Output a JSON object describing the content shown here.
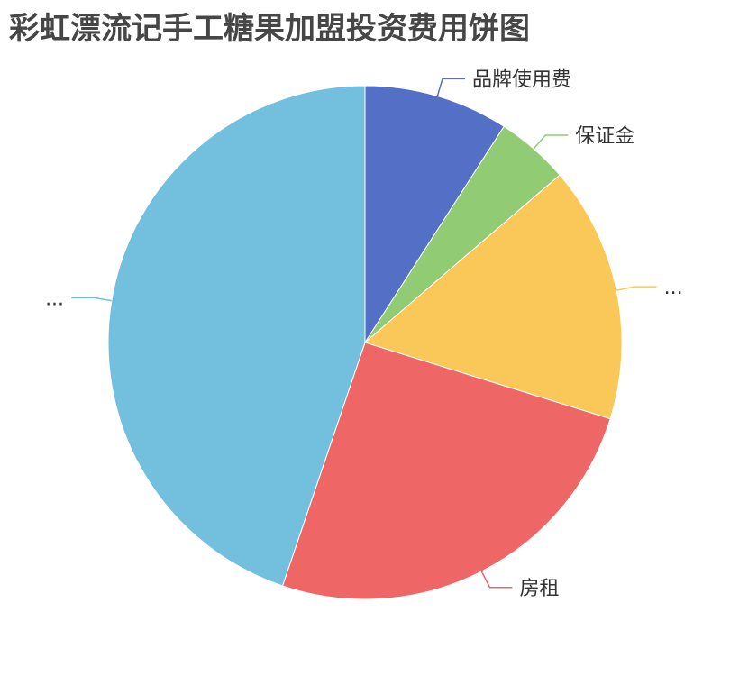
{
  "chart_data": {
    "type": "pie",
    "title": "彩虹漂流记手工糖果加盟投资费用饼图",
    "start_angle_deg": 90,
    "direction": "clockwise",
    "legend": "none",
    "slices": [
      {
        "label": "品牌使用费",
        "value": 9.1,
        "color": "#5470c6"
      },
      {
        "label": "保证金",
        "value": 4.6,
        "color": "#91cc75"
      },
      {
        "label": "...",
        "value": 16.1,
        "color": "#fac858"
      },
      {
        "label": "房租",
        "value": 25.4,
        "color": "#ee6666"
      },
      {
        "label": "...",
        "value": 44.8,
        "color": "#73c0de"
      }
    ]
  }
}
